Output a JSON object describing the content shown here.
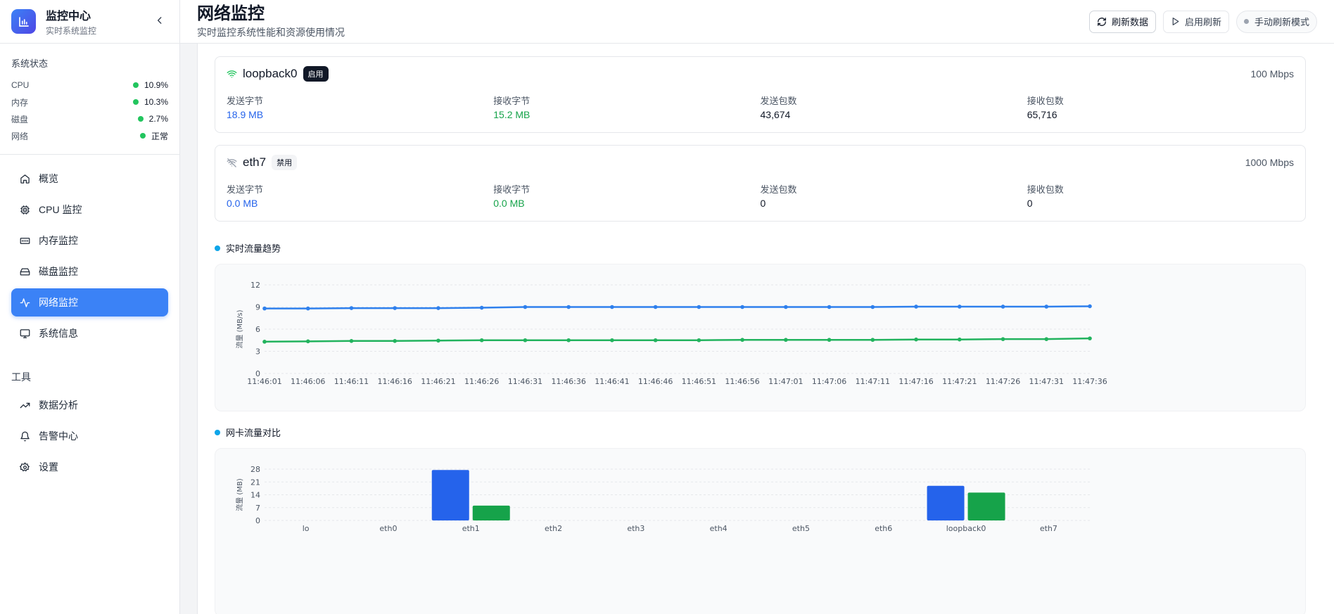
{
  "brand": {
    "title": "监控中心",
    "subtitle": "实时系统监控"
  },
  "status": {
    "title": "系统状态",
    "items": [
      {
        "label": "CPU",
        "value": "10.9%"
      },
      {
        "label": "内存",
        "value": "10.3%"
      },
      {
        "label": "磁盘",
        "value": "2.7%"
      },
      {
        "label": "网络",
        "value": "正常"
      }
    ]
  },
  "nav": {
    "items": [
      {
        "label": "概览",
        "icon": "home-icon"
      },
      {
        "label": "CPU 监控",
        "icon": "cpu-icon"
      },
      {
        "label": "内存监控",
        "icon": "memory-icon"
      },
      {
        "label": "磁盘监控",
        "icon": "disk-icon"
      },
      {
        "label": "网络监控",
        "icon": "activity-icon",
        "active": true
      },
      {
        "label": "系统信息",
        "icon": "monitor-icon"
      }
    ],
    "tools_title": "工具",
    "tools": [
      {
        "label": "数据分析",
        "icon": "trending-up-icon"
      },
      {
        "label": "告警中心",
        "icon": "bell-icon"
      },
      {
        "label": "设置",
        "icon": "gear-icon"
      }
    ]
  },
  "header": {
    "title": "网络监控",
    "subtitle": "实时监控系统性能和资源使用情况",
    "refresh_label": "刷新数据",
    "auto_refresh_label": "启用刷新",
    "mode_label": "手动刷新模式"
  },
  "interfaces": [
    {
      "name": "loopback0",
      "status": "启用",
      "speed": "100 Mbps",
      "sent_label": "发送字节",
      "sent": "18.9 MB",
      "recv_label": "接收字节",
      "recv": "15.2 MB",
      "sent_pkts_label": "发送包数",
      "sent_pkts": "43,674",
      "recv_pkts_label": "接收包数",
      "recv_pkts": "65,716"
    },
    {
      "name": "eth7",
      "status": "禁用",
      "speed": "1000 Mbps",
      "sent_label": "发送字节",
      "sent": "0.0 MB",
      "recv_label": "接收字节",
      "recv": "0.0 MB",
      "sent_pkts_label": "发送包数",
      "sent_pkts": "0",
      "recv_pkts_label": "接收包数",
      "recv_pkts": "0"
    }
  ],
  "sections": {
    "trend": "实时流量趋势",
    "compare": "网卡流量对比"
  },
  "colors": {
    "accent": "#3b82f6",
    "send": "#2f80ed",
    "recv": "#22b35e",
    "ok": "#22c55e"
  },
  "chart_data": [
    {
      "type": "line",
      "title": "",
      "xlabel": "",
      "ylabel": "流量 (MB/s)",
      "ylim": [
        0,
        12
      ],
      "yticks": [
        0,
        3,
        6,
        9,
        12
      ],
      "grid": true,
      "x": [
        "11:46:01",
        "11:46:06",
        "11:46:11",
        "11:46:16",
        "11:46:21",
        "11:46:26",
        "11:46:31",
        "11:46:36",
        "11:46:41",
        "11:46:46",
        "11:46:51",
        "11:46:56",
        "11:47:01",
        "11:47:06",
        "11:47:11",
        "11:47:16",
        "11:47:21",
        "11:47:26",
        "11:47:31",
        "11:47:36"
      ],
      "series": [
        {
          "values": [
            8.8,
            8.8,
            8.85,
            8.85,
            8.85,
            8.9,
            9.0,
            9.0,
            9.0,
            9.0,
            9.0,
            9.0,
            9.0,
            9.0,
            9.0,
            9.05,
            9.05,
            9.05,
            9.05,
            9.1
          ],
          "color": "#2f80ed"
        },
        {
          "values": [
            4.3,
            4.35,
            4.4,
            4.4,
            4.45,
            4.5,
            4.5,
            4.5,
            4.5,
            4.5,
            4.5,
            4.55,
            4.55,
            4.55,
            4.55,
            4.6,
            4.6,
            4.65,
            4.65,
            4.75
          ],
          "color": "#22b35e"
        }
      ]
    },
    {
      "type": "bar",
      "title": "",
      "xlabel": "",
      "ylabel": "流量 (MB)",
      "ylim": [
        0,
        28
      ],
      "yticks": [
        0,
        7,
        14,
        21,
        28
      ],
      "grid": true,
      "categories": [
        "lo",
        "eth0",
        "eth1",
        "eth2",
        "eth3",
        "eth4",
        "eth5",
        "eth6",
        "loopback0",
        "eth7"
      ],
      "series": [
        {
          "values": [
            0,
            0,
            27.5,
            0,
            0,
            0,
            0,
            0,
            18.9,
            0
          ],
          "color": "#2563eb"
        },
        {
          "values": [
            0,
            0,
            8.1,
            0,
            0,
            0,
            0,
            0,
            15.2,
            0
          ],
          "color": "#16a34a"
        }
      ]
    }
  ]
}
